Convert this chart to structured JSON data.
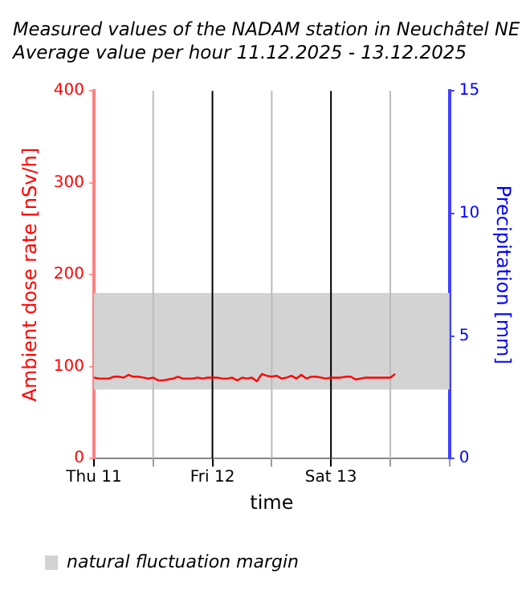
{
  "chart_data": {
    "type": "line",
    "title": "Measured values of the NADAM station in Neuchâtel NE",
    "subtitle": "Average value per hour 11.12.2025 - 13.12.2025",
    "xlabel": "time",
    "ylabel": "Ambient dose rate [nSv/h]",
    "y2label": "Precipitation [mm]",
    "x": [
      "2025-12-11T00:00",
      "2025-12-11T01:00",
      "2025-12-11T02:00",
      "2025-12-11T03:00",
      "2025-12-11T04:00",
      "2025-12-11T05:00",
      "2025-12-11T06:00",
      "2025-12-11T07:00",
      "2025-12-11T08:00",
      "2025-12-11T09:00",
      "2025-12-11T10:00",
      "2025-12-11T11:00",
      "2025-12-11T12:00",
      "2025-12-11T13:00",
      "2025-12-11T14:00",
      "2025-12-11T15:00",
      "2025-12-11T16:00",
      "2025-12-11T17:00",
      "2025-12-11T18:00",
      "2025-12-11T19:00",
      "2025-12-11T20:00",
      "2025-12-11T21:00",
      "2025-12-11T22:00",
      "2025-12-11T23:00",
      "2025-12-12T00:00",
      "2025-12-12T01:00",
      "2025-12-12T02:00",
      "2025-12-12T03:00",
      "2025-12-12T04:00",
      "2025-12-12T05:00",
      "2025-12-12T06:00",
      "2025-12-12T07:00",
      "2025-12-12T08:00",
      "2025-12-12T09:00",
      "2025-12-12T10:00",
      "2025-12-12T11:00",
      "2025-12-12T12:00",
      "2025-12-12T13:00",
      "2025-12-12T14:00",
      "2025-12-12T15:00",
      "2025-12-12T16:00",
      "2025-12-12T17:00",
      "2025-12-12T18:00",
      "2025-12-12T19:00",
      "2025-12-12T20:00",
      "2025-12-12T21:00",
      "2025-12-12T22:00",
      "2025-12-12T23:00",
      "2025-12-13T00:00",
      "2025-12-13T01:00",
      "2025-12-13T02:00",
      "2025-12-13T03:00",
      "2025-12-13T04:00",
      "2025-12-13T05:00",
      "2025-12-13T06:00",
      "2025-12-13T07:00",
      "2025-12-13T08:00",
      "2025-12-13T09:00",
      "2025-12-13T10:00",
      "2025-12-13T11:00",
      "2025-12-13T12:00",
      "2025-12-13T13:00"
    ],
    "series": [
      {
        "color": "#ff0000",
        "values": [
          88,
          87,
          87,
          87,
          89,
          89,
          88,
          91,
          89,
          89,
          88,
          87,
          88,
          85,
          85,
          86,
          87,
          89,
          87,
          87,
          87,
          88,
          87,
          88,
          88,
          88,
          87,
          87,
          88,
          85,
          88,
          87,
          88,
          84,
          92,
          90,
          89,
          90,
          87,
          88,
          90,
          87,
          91,
          87,
          89,
          89,
          88,
          87,
          88,
          88,
          88,
          89,
          89,
          86,
          87,
          88,
          88,
          88,
          88,
          88,
          88,
          92
        ]
      }
    ],
    "xlim": [
      "2025-12-11T00:00",
      "2025-12-14T00:00"
    ],
    "xticks": [
      {
        "value": "2025-12-11T00:00",
        "label": "Thu 11"
      },
      {
        "value": "2025-12-11T12:00",
        "label": null
      },
      {
        "value": "2025-12-12T00:00",
        "label": "Fri 12"
      },
      {
        "value": "2025-12-12T12:00",
        "label": null
      },
      {
        "value": "2025-12-13T00:00",
        "label": "Sat 13"
      },
      {
        "value": "2025-12-13T12:00",
        "label": null
      },
      {
        "value": "2025-12-14T00:00",
        "label": null
      }
    ],
    "ylim": [
      0,
      400
    ],
    "yticks": [
      0,
      100,
      200,
      300,
      400
    ],
    "y2lim": [
      0,
      15
    ],
    "y2ticks": [
      0,
      5,
      10,
      15
    ],
    "bands": [
      {
        "axis": "y",
        "from": 75,
        "to": 180,
        "label": "natural fluctuation margin",
        "color": "#d3d3d3"
      }
    ],
    "grid": "x",
    "legend": "bottom left",
    "marker": "none",
    "line_style": "solid"
  }
}
